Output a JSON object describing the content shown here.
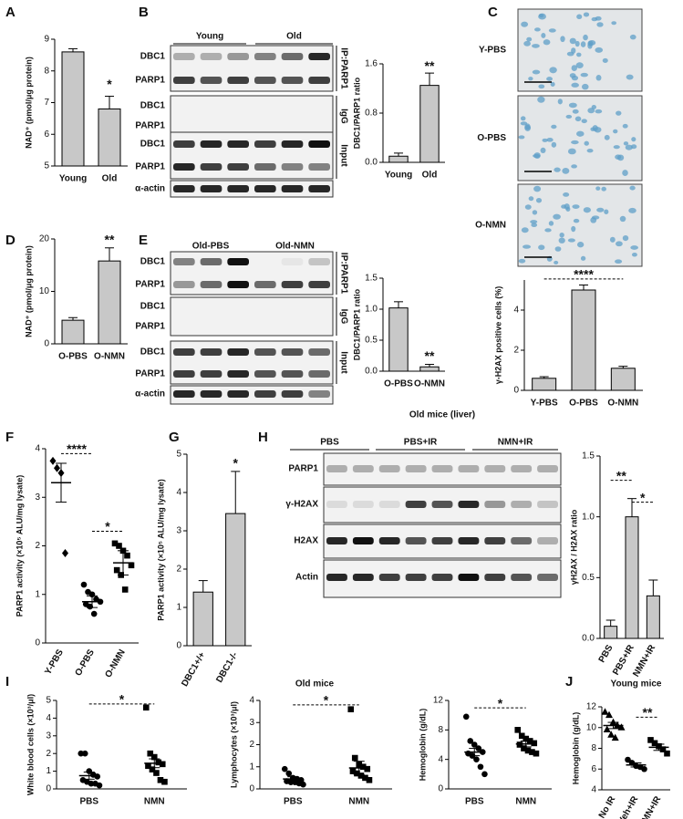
{
  "panels": [
    "A",
    "B",
    "C",
    "D",
    "E",
    "F",
    "G",
    "H",
    "I",
    "J"
  ],
  "images": {
    "labels": [
      "Y-PBS",
      "O-PBS",
      "O-NMN"
    ]
  },
  "blots": [
    {
      "group_labels": [
        "Young",
        "Old"
      ],
      "row_labels": [
        "DBC1",
        "PARP1",
        "DBC1",
        "PARP1",
        "DBC1",
        "PARP1",
        "α-actin"
      ],
      "side_labels": [
        "IP:PARP1",
        "IgG",
        "Input"
      ]
    },
    {
      "group_labels": [
        "Old-PBS",
        "Old-NMN"
      ],
      "row_labels": [
        "DBC1",
        "PARP1",
        "DBC1",
        "PARP1",
        "DBC1",
        "PARP1",
        "α-actin"
      ],
      "side_labels": [
        "IP:PARP1",
        "IgG",
        "Input"
      ]
    },
    {
      "title": "Old mice (liver)",
      "group_labels": [
        "PBS",
        "PBS+IR",
        "NMN+IR"
      ],
      "row_labels": [
        "PARP1",
        "γ-H2AX",
        "H2AX",
        "Actin"
      ]
    }
  ],
  "chart_data": [
    {
      "type": "bar",
      "ylabel": "NAD⁺ (pmol/μg protein)",
      "categories": [
        "Young",
        "Old"
      ],
      "values": [
        8.6,
        6.8
      ],
      "errors": [
        0.1,
        0.4
      ],
      "color": "#c8c8c8",
      "ylim": [
        5,
        9
      ],
      "yticks": [
        5,
        6,
        7,
        8,
        9
      ],
      "annotations": [
        "*"
      ]
    },
    {
      "type": "bar",
      "ylabel": "DBC1/PARP1 ratio",
      "categories": [
        "Young",
        "Old"
      ],
      "values": [
        0.1,
        1.25
      ],
      "errors": [
        0.05,
        0.2
      ],
      "color": "#c8c8c8",
      "ylim": [
        0,
        1.6
      ],
      "yticks": [
        {
          "value": 0,
          "label": "0.0"
        },
        0.8,
        1.6
      ],
      "annotations": [
        "**"
      ]
    },
    {
      "type": "bar",
      "ylabel": "γ-H2AX positive cells (%)",
      "categories": [
        "Y-PBS",
        "O-PBS",
        "O-NMN"
      ],
      "values": [
        0.6,
        5.0,
        1.1
      ],
      "errors": [
        0.08,
        0.25,
        0.1
      ],
      "color": "#c8c8c8",
      "ylim": [
        0,
        5.5
      ],
      "yticks": [
        0,
        2,
        4
      ],
      "annotations": [
        "****"
      ]
    },
    {
      "type": "bar",
      "ylabel": "NAD⁺ (pmol/μg protein)",
      "categories": [
        "O-PBS",
        "O-NMN"
      ],
      "values": [
        4.5,
        15.8
      ],
      "errors": [
        0.5,
        2.5
      ],
      "color": "#c8c8c8",
      "ylim": [
        0,
        20
      ],
      "yticks": [
        0,
        10,
        20
      ],
      "annotations": [
        "**"
      ]
    },
    {
      "type": "bar",
      "ylabel": "DBC1/PARP1 ratio",
      "categories": [
        "O-PBS",
        "O-NMN"
      ],
      "values": [
        1.02,
        0.07
      ],
      "errors": [
        0.1,
        0.04
      ],
      "color": "#c8c8c8",
      "ylim": [
        0,
        1.5
      ],
      "yticks": [
        {
          "value": 0,
          "label": "0.0"
        },
        {
          "value": 0.5,
          "label": "0.5"
        },
        {
          "value": 1,
          "label": "1.0"
        },
        {
          "value": 1.5,
          "label": "1.5"
        }
      ],
      "annotations": [
        "**"
      ]
    },
    {
      "type": "scatter",
      "ylabel": "PARP1 activity (×10⁵ ALU/mg lysate)",
      "categories": [
        "Y-PBS",
        "O-PBS",
        "O-NMN"
      ],
      "markers": [
        "diamond",
        "circle",
        "square"
      ],
      "values": [
        3.3,
        0.85,
        1.65
      ],
      "errors": [
        0.4,
        0.12,
        0.25
      ],
      "points": [
        [
          3.75,
          3.6,
          3.5,
          1.85
        ],
        [
          1.2,
          1.05,
          1.0,
          0.9,
          0.85,
          0.8,
          0.75,
          0.6
        ],
        [
          2.05,
          2.0,
          1.9,
          1.8,
          1.6,
          1.5,
          1.4,
          1.1
        ]
      ],
      "ylim": [
        0,
        4
      ],
      "yticks": [
        0,
        1,
        2,
        3,
        4
      ],
      "annotations": [
        "****",
        "*"
      ]
    },
    {
      "type": "bar",
      "ylabel": "PARP1 activity (×10⁵ ALU/mg lysate)",
      "categories": [
        "DBC1+/+",
        "DBC1-/-"
      ],
      "values": [
        1.4,
        3.45
      ],
      "errors": [
        0.3,
        1.1
      ],
      "color": "#c8c8c8",
      "ylim": [
        0,
        5
      ],
      "yticks": [
        0,
        1,
        2,
        3,
        4,
        5
      ],
      "annotations": [
        "*"
      ]
    },
    {
      "type": "bar",
      "ylabel": "γH2AX / H2AX ratio",
      "categories": [
        "PBS",
        "PBS+IR",
        "NMN+IR"
      ],
      "values": [
        0.1,
        1.0,
        0.35
      ],
      "errors": [
        0.05,
        0.15,
        0.13
      ],
      "color": "#c8c8c8",
      "ylim": [
        0,
        1.5
      ],
      "yticks": [
        {
          "value": 0,
          "label": "0.0"
        },
        {
          "value": 0.5,
          "label": "0.5"
        },
        {
          "value": 1,
          "label": "1.0"
        },
        {
          "value": 1.5,
          "label": "1.5"
        }
      ],
      "annotations": [
        "**",
        "*"
      ]
    },
    {
      "type": "scatter",
      "ylabel": "White blood cells (×10³/μl)",
      "categories": [
        "PBS",
        "NMN"
      ],
      "markers": [
        "circle",
        "square"
      ],
      "values": [
        0.75,
        1.45
      ],
      "errors": [
        0.2,
        0.25
      ],
      "points": [
        [
          2.0,
          2.0,
          1.0,
          0.8,
          0.7,
          0.5,
          0.4,
          0.3,
          0.3,
          0.2
        ],
        [
          4.6,
          2.0,
          1.8,
          1.5,
          1.4,
          1.3,
          1.1,
          0.9,
          0.5,
          0.4
        ]
      ],
      "ylim": [
        0,
        5
      ],
      "yticks": [
        0,
        1,
        2,
        3,
        4,
        5
      ],
      "annotations": [
        "*"
      ]
    },
    {
      "type": "scatter",
      "title": "Old mice",
      "ylabel": "Lymphocytes (×10³/μl)",
      "categories": [
        "PBS",
        "NMN"
      ],
      "markers": [
        "circle",
        "square"
      ],
      "values": [
        0.45,
        0.95
      ],
      "errors": [
        0.1,
        0.3
      ],
      "points": [
        [
          0.9,
          0.7,
          0.5,
          0.45,
          0.4,
          0.35,
          0.3,
          0.3,
          0.25,
          0.2
        ],
        [
          3.6,
          1.4,
          1.1,
          1.0,
          0.9,
          0.8,
          0.7,
          0.6,
          0.5,
          0.4
        ]
      ],
      "ylim": [
        0,
        4
      ],
      "yticks": [
        0,
        1,
        2,
        3,
        4
      ],
      "annotations": [
        "*"
      ]
    },
    {
      "type": "scatter",
      "ylabel": "Hemoglobin (g/dL)",
      "categories": [
        "PBS",
        "NMN"
      ],
      "markers": [
        "circle",
        "square"
      ],
      "values": [
        5.0,
        6.1
      ],
      "errors": [
        0.5,
        0.4
      ],
      "points": [
        [
          9.8,
          6.5,
          6.0,
          5.5,
          5.0,
          4.8,
          4.5,
          4.0,
          3.0,
          2.0
        ],
        [
          8.0,
          7.2,
          6.8,
          6.5,
          6.2,
          6.0,
          5.5,
          5.2,
          5.0,
          4.8
        ]
      ],
      "ylim": [
        0,
        12
      ],
      "yticks": [
        0,
        4,
        8,
        12
      ],
      "annotations": [
        "*"
      ]
    },
    {
      "type": "scatter",
      "title": "Young mice",
      "ylabel": "Hemoglobin (g/dL)",
      "categories": [
        "No IR",
        "Veh+IR",
        "NMN+IR"
      ],
      "markers": [
        "triangle",
        "circle",
        "square"
      ],
      "values": [
        10.2,
        6.4,
        8.1
      ],
      "errors": [
        0.3,
        0.2,
        0.3
      ],
      "points": [
        [
          11.5,
          11.2,
          10.5,
          10.2,
          10.0,
          9.8,
          9.3,
          9.0
        ],
        [
          6.9,
          6.6,
          6.3,
          6.2,
          6.0
        ],
        [
          8.8,
          8.5,
          8.2,
          7.9,
          7.5
        ]
      ],
      "ylim": [
        4,
        12
      ],
      "yticks": [
        4,
        6,
        8,
        10,
        12
      ],
      "annotations": [
        "**"
      ]
    }
  ]
}
